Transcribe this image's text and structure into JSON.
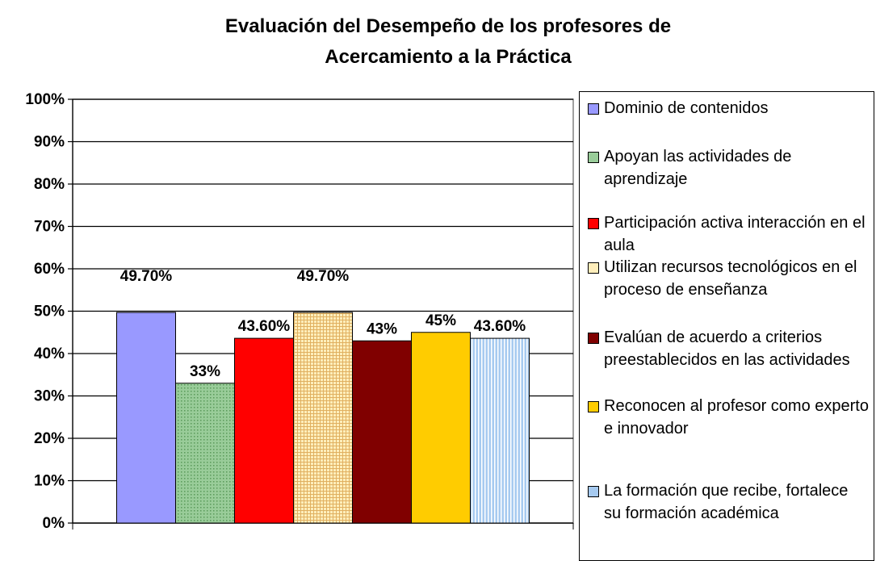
{
  "chart_data": {
    "type": "bar",
    "title": "Evaluación del Desempeño de los profesores de Acercamiento a la Práctica",
    "categories": [
      null
    ],
    "series": [
      {
        "name": "Dominio de contenidos",
        "color": "#9999ff",
        "values": [
          49.7
        ],
        "value_labels": [
          "49.70%"
        ]
      },
      {
        "name": "Apoyan las actividades de aprendizaje",
        "color": "#99cc99",
        "pattern": "dots",
        "values": [
          33
        ],
        "value_labels": [
          "33%"
        ]
      },
      {
        "name": "Participación activa interacción en el aula",
        "color": "#ff0000",
        "values": [
          43.6
        ],
        "value_labels": [
          "43.60%"
        ]
      },
      {
        "name": "Utilizan recursos tecnológicos en el proceso de enseñanza",
        "color": "#ffeebb",
        "pattern": "grid",
        "values": [
          49.7
        ],
        "value_labels": [
          "49.70%"
        ]
      },
      {
        "name": "Evalúan de acuerdo a criterios preestablecidos en las actividades",
        "color": "#800000",
        "values": [
          43
        ],
        "value_labels": [
          "43%"
        ]
      },
      {
        "name": "Reconocen al profesor como experto e innovador",
        "color": "#ffcc00",
        "values": [
          45
        ],
        "value_labels": [
          "45%"
        ]
      },
      {
        "name": "La formación que recibe, fortalece su formación académica",
        "color": "#a6caf0",
        "pattern": "stripes",
        "values": [
          43.6
        ],
        "value_labels": [
          "43.60%"
        ]
      }
    ],
    "ylim": [
      0,
      100
    ],
    "yticks": [
      {
        "value": 0,
        "label": "0%"
      },
      {
        "value": 10,
        "label": "10%"
      },
      {
        "value": 20,
        "label": "20%"
      },
      {
        "value": 30,
        "label": "30%"
      },
      {
        "value": 40,
        "label": "40%"
      },
      {
        "value": 50,
        "label": "50%"
      },
      {
        "value": 60,
        "label": "60%"
      },
      {
        "value": 70,
        "label": "70%"
      },
      {
        "value": 80,
        "label": "80%"
      },
      {
        "value": 90,
        "label": "90%"
      },
      {
        "value": 100,
        "label": "100%"
      }
    ],
    "grid": true,
    "legend": "right"
  }
}
